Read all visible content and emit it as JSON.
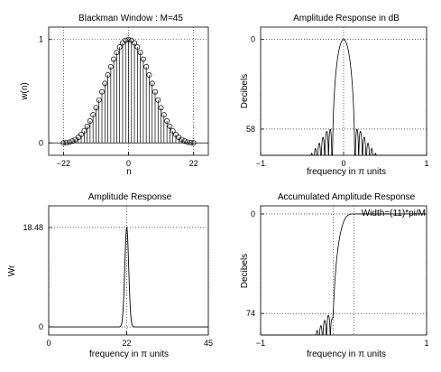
{
  "chart_data": [
    {
      "type": "stem",
      "title": "Blackman Window : M=45",
      "xlabel": "n",
      "ylabel": "w(n)",
      "xlim": [
        -27,
        27
      ],
      "ylim": [
        -0.12,
        1.12
      ],
      "xticks": [
        -22,
        0,
        22
      ],
      "xtick_labels": [
        "−22",
        "0",
        "22"
      ],
      "yticks": [
        0,
        1
      ],
      "ytick_labels": [
        "0",
        "1"
      ],
      "grid": true,
      "n_range": [
        -22,
        22
      ],
      "window": "blackman",
      "M": 45
    },
    {
      "type": "line",
      "title": "Amplitude Response in dB",
      "xlabel": "frequency in π units",
      "ylabel": "Decibels",
      "xlim": [
        -1,
        1
      ],
      "ylim": [
        -75,
        8
      ],
      "xticks": [
        -1,
        0,
        1
      ],
      "xtick_labels": [
        "−1",
        "0",
        "1"
      ],
      "yticks": [
        0,
        -58
      ],
      "ytick_labels": [
        "0",
        "58"
      ],
      "grid": true
    },
    {
      "type": "line",
      "title": "Amplitude Response",
      "xlabel": "frequency in π units",
      "ylabel": "Wr",
      "xlim": [
        0,
        45
      ],
      "ylim": [
        -1.5,
        22.5
      ],
      "xticks": [
        0,
        22,
        45
      ],
      "xtick_labels": [
        "0",
        "22",
        "45"
      ],
      "yticks": [
        0,
        18.48
      ],
      "ytick_labels": [
        "0",
        "18.48"
      ],
      "peak": 18.48,
      "grid": true
    },
    {
      "type": "line",
      "title": "Accumulated Amplitude Response",
      "xlabel": "frequency in π units",
      "ylabel": "Decibels",
      "xlim": [
        -1,
        1
      ],
      "ylim": [
        -90,
        6
      ],
      "xticks": [
        -1,
        1
      ],
      "xtick_labels": [
        "−1",
        "1"
      ],
      "yticks": [
        0,
        -74
      ],
      "ytick_labels": [
        "0",
        "74"
      ],
      "annotation": "Width=(11)*pi/M",
      "grid": true
    }
  ]
}
